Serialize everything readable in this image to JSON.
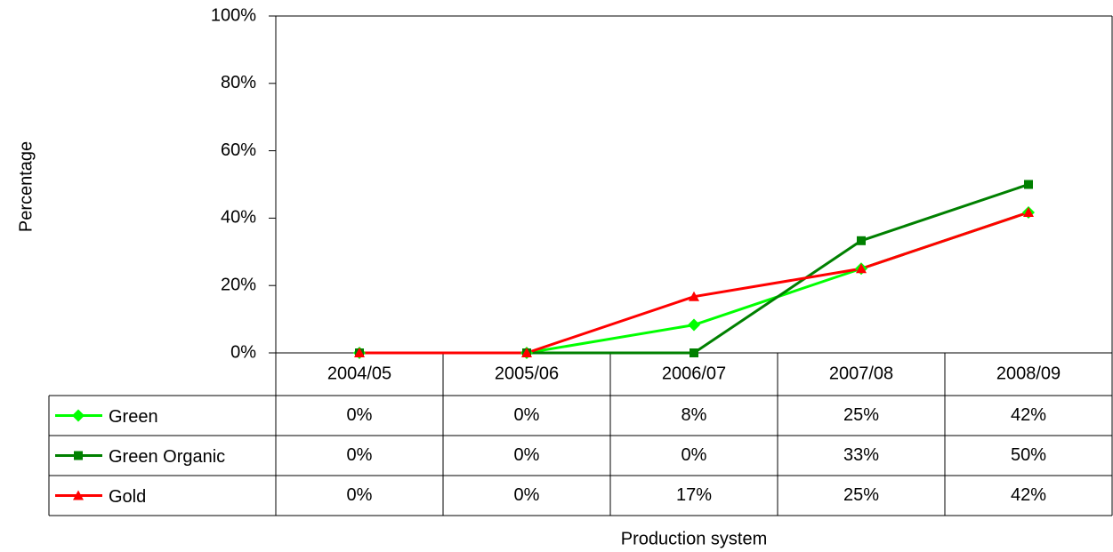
{
  "chart_data": {
    "type": "line",
    "x_label": "Production system",
    "y_label": "Percentage",
    "categories": [
      "2004/05",
      "2005/06",
      "2006/07",
      "2007/08",
      "2008/09"
    ],
    "series": [
      {
        "name": "Green",
        "color": "#00ff00",
        "marker": "diamond",
        "values": [
          0,
          0,
          8.3,
          25,
          41.7
        ],
        "value_labels": [
          "0%",
          "0%",
          "8%",
          "25%",
          "42%"
        ]
      },
      {
        "name": "Green Organic",
        "color": "#008000",
        "marker": "square",
        "values": [
          0,
          0,
          0,
          33.3,
          50
        ],
        "value_labels": [
          "0%",
          "0%",
          "0%",
          "33%",
          "50%"
        ]
      },
      {
        "name": "Gold",
        "color": "#ff0000",
        "marker": "triangle",
        "values": [
          0,
          0,
          16.7,
          25,
          41.7
        ],
        "value_labels": [
          "0%",
          "0%",
          "17%",
          "25%",
          "42%"
        ]
      }
    ],
    "ylim": [
      0,
      100
    ],
    "yticks": [
      {
        "value": 0,
        "label": "0%"
      },
      {
        "value": 20,
        "label": "20%"
      },
      {
        "value": 40,
        "label": "40%"
      },
      {
        "value": 60,
        "label": "60%"
      },
      {
        "value": 80,
        "label": "80%"
      },
      {
        "value": 100,
        "label": "100%"
      }
    ]
  }
}
